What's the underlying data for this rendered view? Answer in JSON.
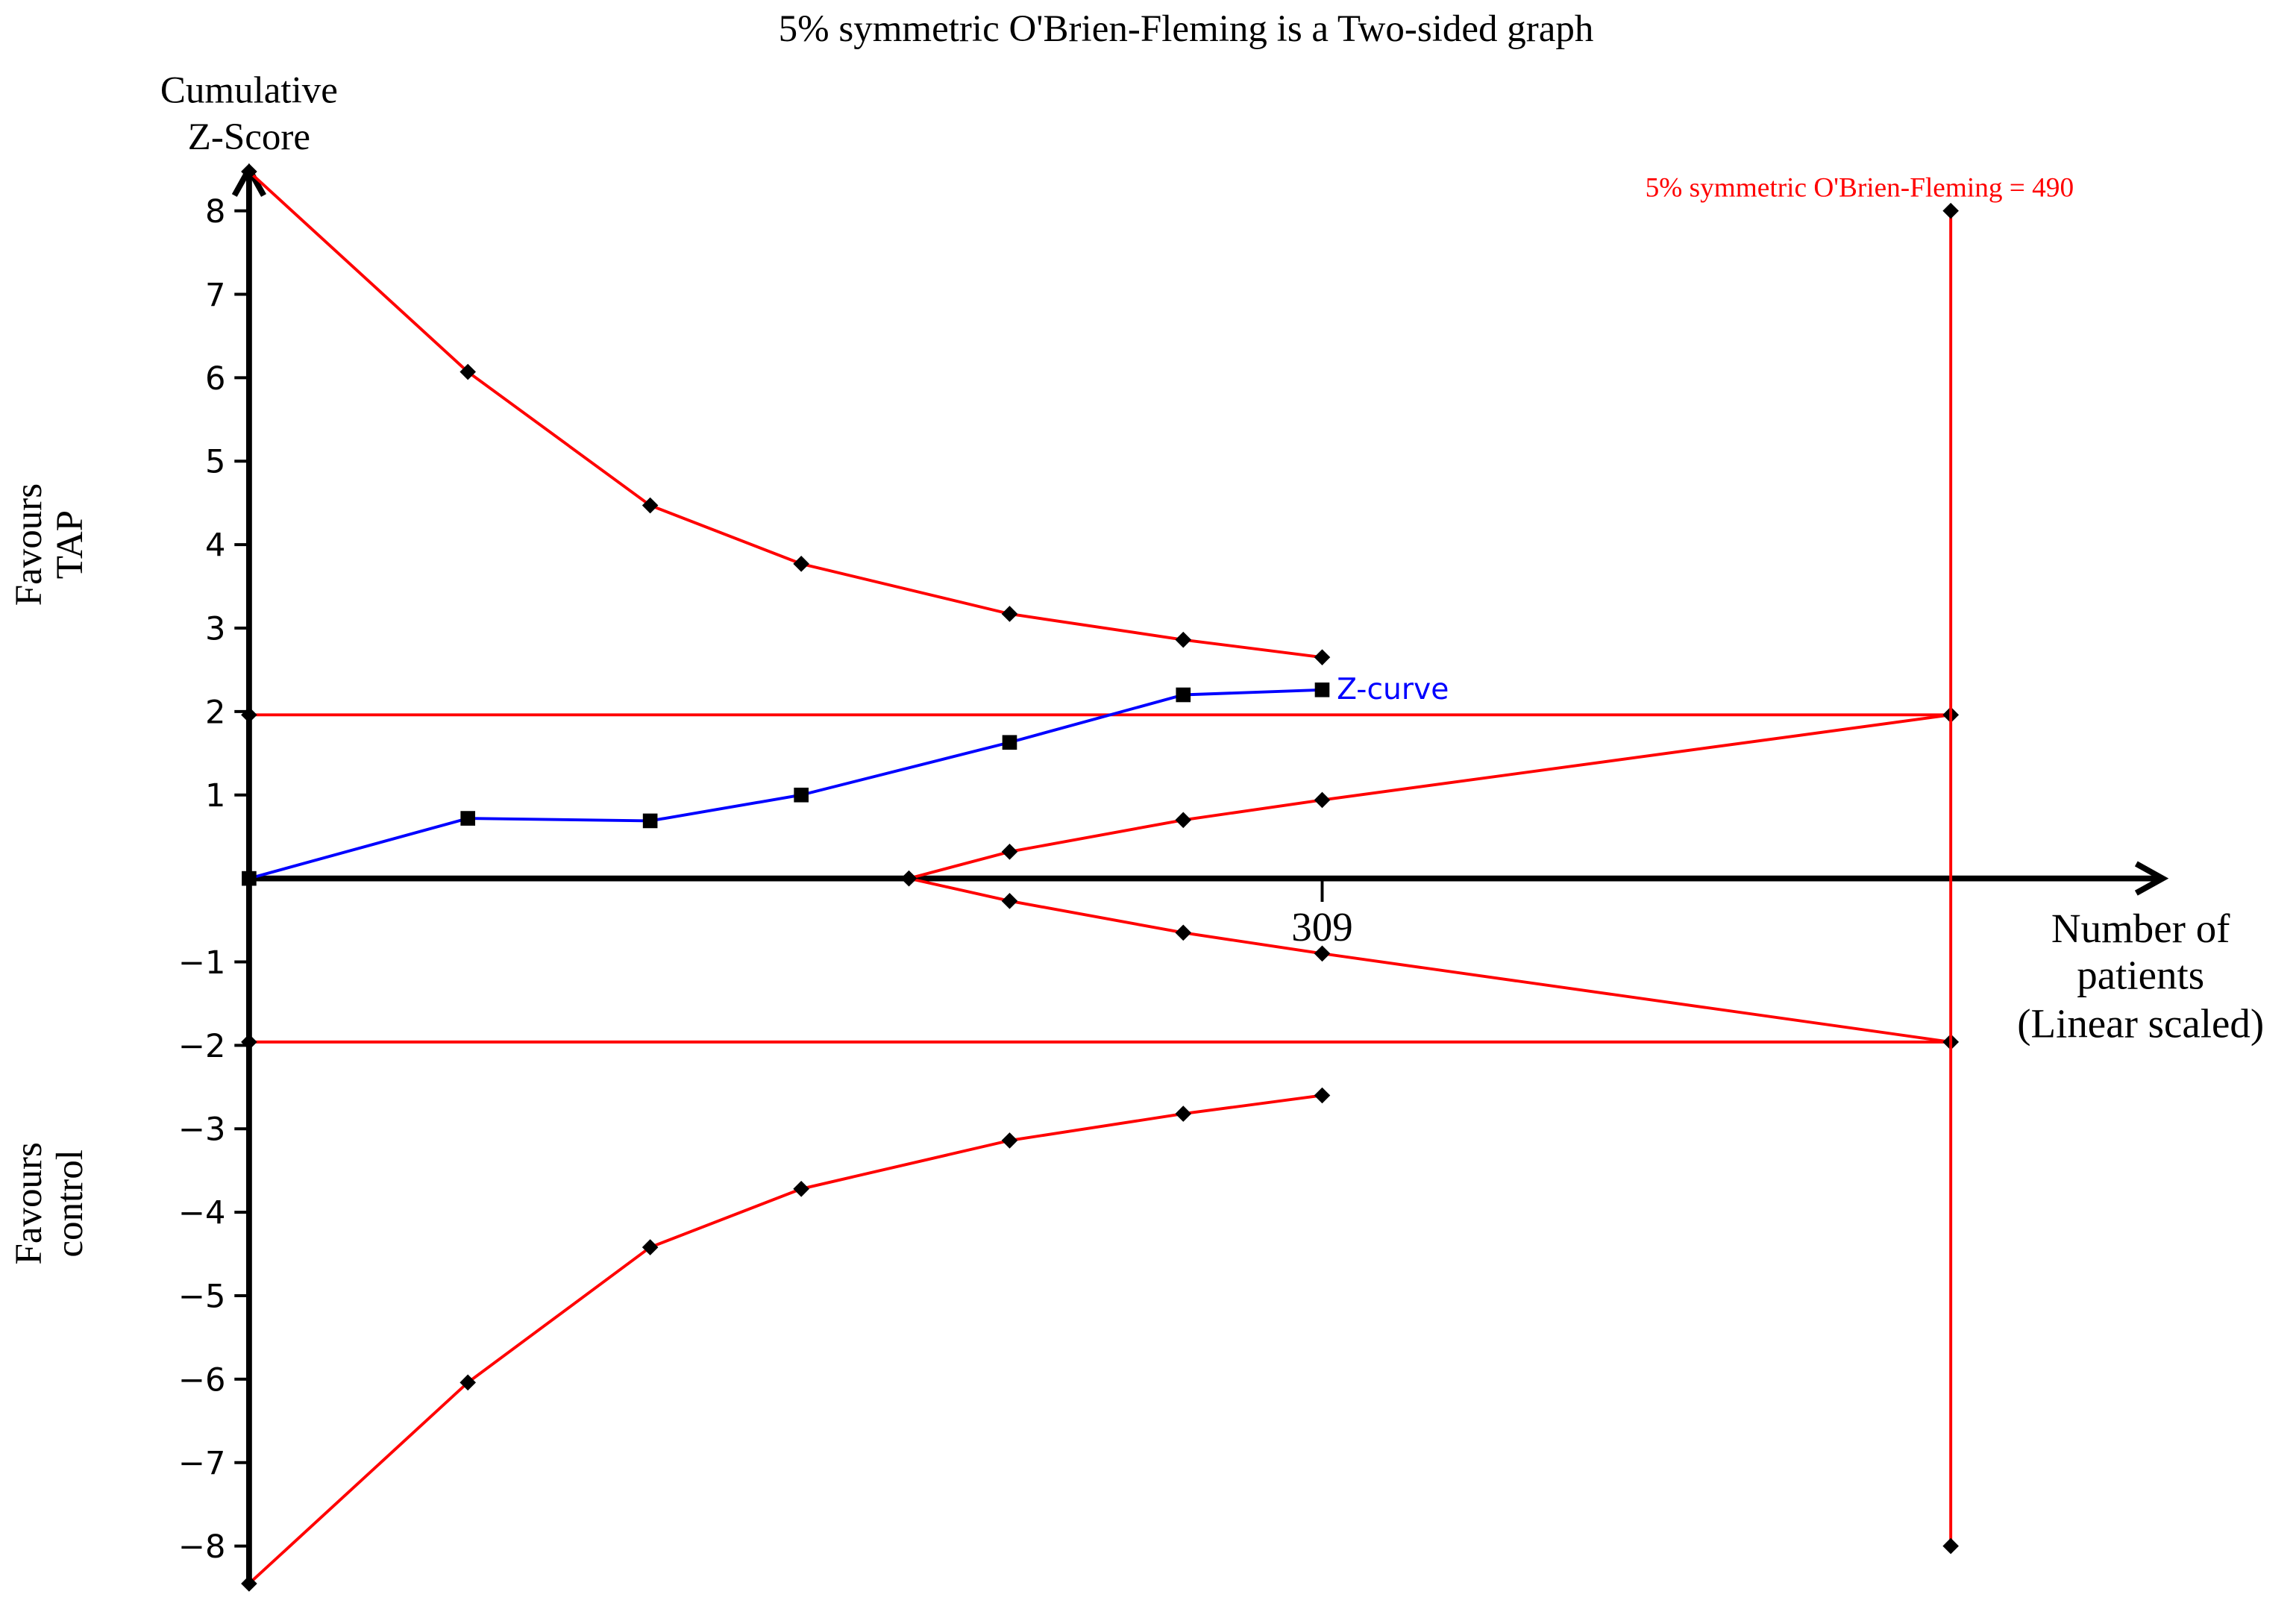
{
  "chart_data": {
    "type": "line",
    "title": "5% symmetric O'Brien-Fleming is a Two-sided graph",
    "y_label": [
      "Cumulative",
      "Z-Score"
    ],
    "upper_label": [
      "Favours",
      "TAP"
    ],
    "lower_label": [
      "Favours",
      "control"
    ],
    "x_label": [
      "Number of",
      "patients",
      "(Linear scaled)"
    ],
    "annotation": "5% symmetric O'Brien-Fleming = 490",
    "xlim": [
      0,
      551
    ],
    "ylim": [
      -8.5,
      8.5
    ],
    "xticks": [
      309
    ],
    "yticks": [
      {
        "value": -8,
        "label": "−8"
      },
      {
        "value": -7,
        "label": "−7"
      },
      {
        "value": -6,
        "label": "−6"
      },
      {
        "value": -5,
        "label": "−5"
      },
      {
        "value": -4,
        "label": "−4"
      },
      {
        "value": -3,
        "label": "−3"
      },
      {
        "value": -2,
        "label": "−2"
      },
      {
        "value": -1,
        "label": "−1"
      },
      1,
      2,
      3,
      4,
      5,
      6,
      7,
      8
    ],
    "series": [
      {
        "name": "Z-curve",
        "color": "#0000ff",
        "marker": "square",
        "x": [
          0,
          63,
          115.5,
          159,
          219,
          269,
          309
        ],
        "values": [
          0,
          0.72,
          0.69,
          1.0,
          1.63,
          2.2,
          2.26
        ]
      },
      {
        "color": "#ff0000",
        "marker": "diamond",
        "x": [
          0,
          63,
          115.5,
          159,
          219,
          269,
          309
        ],
        "values": [
          8.47,
          6.07,
          4.47,
          3.77,
          3.17,
          2.86,
          2.65
        ]
      },
      {
        "color": "#ff0000",
        "marker": "diamond",
        "x": [
          0,
          63,
          115.5,
          159,
          219,
          269,
          309
        ],
        "values": [
          -8.45,
          -6.04,
          -4.42,
          -3.72,
          -3.14,
          -2.82,
          -2.6
        ]
      },
      {
        "color": "#ff0000",
        "marker": "diamond",
        "x": [
          190,
          219,
          269,
          309,
          490
        ],
        "values": [
          0,
          0.32,
          0.7,
          0.94,
          1.96
        ]
      },
      {
        "color": "#ff0000",
        "marker": "diamond",
        "x": [
          190,
          219,
          269,
          309,
          490
        ],
        "values": [
          0,
          -0.27,
          -0.65,
          -0.9,
          -1.96
        ]
      },
      {
        "color": "#ff0000",
        "marker": "diamond",
        "x": [
          0,
          490
        ],
        "values": [
          1.96,
          1.96
        ]
      },
      {
        "color": "#ff0000",
        "marker": "diamond",
        "x": [
          0,
          490
        ],
        "values": [
          -1.96,
          -1.96
        ]
      },
      {
        "color": "#ff0000",
        "marker": "diamond",
        "x": [
          490,
          490
        ],
        "values": [
          8,
          -8
        ]
      }
    ]
  }
}
